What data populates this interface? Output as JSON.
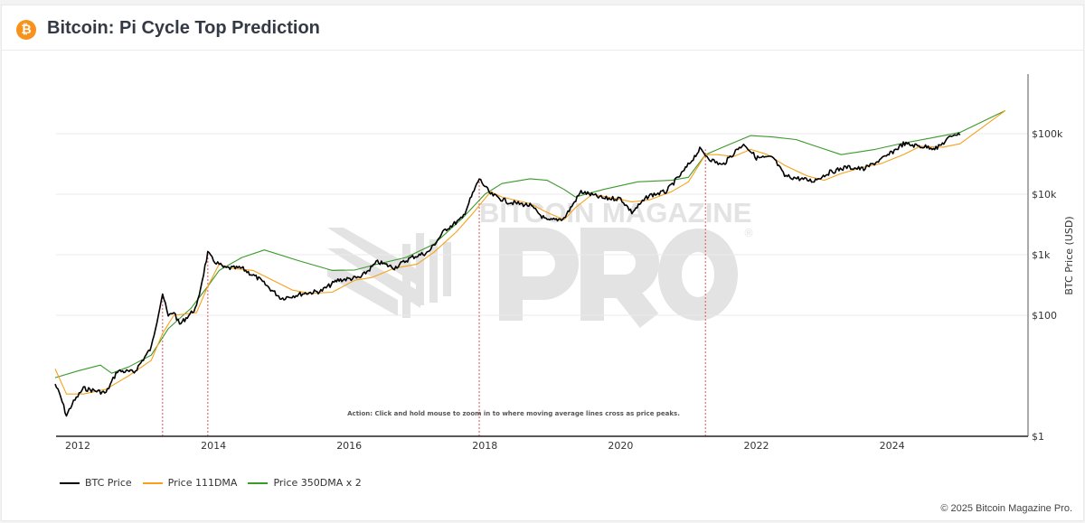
{
  "header": {
    "title": "Bitcoin: Pi Cycle Top Prediction",
    "icon": "bitcoin-icon"
  },
  "footer": {
    "copyright": "© 2025 Bitcoin Magazine Pro."
  },
  "watermark": {
    "line1": "BITCOIN MAGAZINE",
    "line2": "PRO",
    "mark": "®"
  },
  "colors": {
    "price": "#000000",
    "dma111": "#f7a11a",
    "dma350x2": "#3a9a2a",
    "cross": "#e74c4c"
  },
  "chart_data": {
    "type": "line",
    "title": "",
    "xlabel": "",
    "ylabel": "BTC Price (USD)",
    "yscale": "log",
    "ylim": [
      1,
      1000000
    ],
    "xlim": [
      "2011-09",
      "2026-01"
    ],
    "grid": true,
    "legend_placement": "bottom-left",
    "x_ticks": [
      "2012",
      "2014",
      "2016",
      "2018",
      "2020",
      "2022",
      "2024"
    ],
    "y_ticks": [
      {
        "value": 1,
        "label": "$1"
      },
      {
        "value": 100,
        "label": "$100"
      },
      {
        "value": 1000,
        "label": "$1k"
      },
      {
        "value": 10000,
        "label": "$10k"
      },
      {
        "value": 100000,
        "label": "$100k"
      }
    ],
    "annotation": "Action: Click and hold mouse to zoom in to where moving average lines cross as price peaks.",
    "crossings": [
      "2013-04",
      "2013-12",
      "2017-12",
      "2021-04"
    ],
    "series": [
      {
        "name": "BTC Price",
        "color": "#000000",
        "points": [
          [
            "2011-09",
            7.3
          ],
          [
            "2011-10",
            4.4
          ],
          [
            "2011-11",
            2.2
          ],
          [
            "2011-12",
            3.4
          ],
          [
            "2012-02",
            6.2
          ],
          [
            "2012-06",
            5.2
          ],
          [
            "2012-08",
            12
          ],
          [
            "2012-11",
            11.5
          ],
          [
            "2013-02",
            29
          ],
          [
            "2013-04",
            230
          ],
          [
            "2013-05",
            95
          ],
          [
            "2013-06",
            115
          ],
          [
            "2013-07",
            70
          ],
          [
            "2013-10",
            135
          ],
          [
            "2013-12",
            1070
          ],
          [
            "2014-01",
            800
          ],
          [
            "2014-03",
            600
          ],
          [
            "2014-06",
            600
          ],
          [
            "2014-09",
            400
          ],
          [
            "2015-01",
            190
          ],
          [
            "2015-05",
            230
          ],
          [
            "2015-08",
            250
          ],
          [
            "2015-11",
            380
          ],
          [
            "2016-03",
            420
          ],
          [
            "2016-06",
            760
          ],
          [
            "2016-09",
            610
          ],
          [
            "2016-12",
            900
          ],
          [
            "2017-03",
            1100
          ],
          [
            "2017-06",
            2600
          ],
          [
            "2017-09",
            4000
          ],
          [
            "2017-12",
            18000
          ],
          [
            "2018-02",
            10000
          ],
          [
            "2018-05",
            7500
          ],
          [
            "2018-09",
            6500
          ],
          [
            "2018-12",
            3600
          ],
          [
            "2019-03",
            4000
          ],
          [
            "2019-06",
            11000
          ],
          [
            "2019-10",
            8500
          ],
          [
            "2020-01",
            8500
          ],
          [
            "2020-03",
            5000
          ],
          [
            "2020-06",
            9500
          ],
          [
            "2020-09",
            11000
          ],
          [
            "2020-12",
            23000
          ],
          [
            "2021-03",
            55000
          ],
          [
            "2021-05",
            37000
          ],
          [
            "2021-07",
            30000
          ],
          [
            "2021-10",
            60000
          ],
          [
            "2021-11",
            66000
          ],
          [
            "2022-01",
            40000
          ],
          [
            "2022-04",
            40000
          ],
          [
            "2022-06",
            20000
          ],
          [
            "2022-11",
            16500
          ],
          [
            "2023-02",
            23000
          ],
          [
            "2023-05",
            28000
          ],
          [
            "2023-08",
            26000
          ],
          [
            "2023-12",
            42000
          ],
          [
            "2024-03",
            68000
          ],
          [
            "2024-06",
            62000
          ],
          [
            "2024-09",
            58000
          ],
          [
            "2024-12",
            100000
          ],
          [
            "2025-01",
            95000
          ]
        ]
      },
      {
        "name": "Price 111DMA",
        "color": "#f7a11a",
        "points": [
          [
            "2011-09",
            13
          ],
          [
            "2011-11",
            5
          ],
          [
            "2012-02",
            5
          ],
          [
            "2012-06",
            6
          ],
          [
            "2012-10",
            10
          ],
          [
            "2013-02",
            18
          ],
          [
            "2013-04",
            50
          ],
          [
            "2013-06",
            100
          ],
          [
            "2013-10",
            110
          ],
          [
            "2013-12",
            300
          ],
          [
            "2014-02",
            700
          ],
          [
            "2014-04",
            600
          ],
          [
            "2014-08",
            550
          ],
          [
            "2014-11",
            400
          ],
          [
            "2015-03",
            260
          ],
          [
            "2015-06",
            230
          ],
          [
            "2015-10",
            240
          ],
          [
            "2016-02",
            380
          ],
          [
            "2016-05",
            420
          ],
          [
            "2016-09",
            600
          ],
          [
            "2017-01",
            700
          ],
          [
            "2017-04",
            1100
          ],
          [
            "2017-08",
            2400
          ],
          [
            "2017-11",
            5000
          ],
          [
            "2018-02",
            11000
          ],
          [
            "2018-04",
            9000
          ],
          [
            "2018-09",
            7000
          ],
          [
            "2018-12",
            5000
          ],
          [
            "2019-03",
            3800
          ],
          [
            "2019-05",
            6000
          ],
          [
            "2019-08",
            10000
          ],
          [
            "2019-12",
            8500
          ],
          [
            "2020-03",
            7500
          ],
          [
            "2020-06",
            8000
          ],
          [
            "2020-10",
            11000
          ],
          [
            "2021-01",
            16000
          ],
          [
            "2021-04",
            45000
          ],
          [
            "2021-06",
            45000
          ],
          [
            "2021-09",
            42000
          ],
          [
            "2021-12",
            55000
          ],
          [
            "2022-03",
            45000
          ],
          [
            "2022-06",
            30000
          ],
          [
            "2022-10",
            20000
          ],
          [
            "2023-01",
            17000
          ],
          [
            "2023-04",
            22000
          ],
          [
            "2023-08",
            28000
          ],
          [
            "2023-11",
            32000
          ],
          [
            "2024-03",
            45000
          ],
          [
            "2024-06",
            62000
          ],
          [
            "2024-10",
            60000
          ],
          [
            "2025-01",
            68000
          ],
          [
            "2025-09",
            240000
          ]
        ]
      },
      {
        "name": "Price 350DMA x 2",
        "color": "#3a9a2a",
        "points": [
          [
            "2011-09",
            9.3
          ],
          [
            "2012-01",
            12
          ],
          [
            "2012-05",
            15
          ],
          [
            "2012-07",
            11
          ],
          [
            "2012-10",
            14
          ],
          [
            "2013-02",
            22
          ],
          [
            "2013-05",
            60
          ],
          [
            "2013-09",
            130
          ],
          [
            "2013-12",
            300
          ],
          [
            "2014-02",
            550
          ],
          [
            "2014-06",
            900
          ],
          [
            "2014-10",
            1200
          ],
          [
            "2015-04",
            800
          ],
          [
            "2015-10",
            550
          ],
          [
            "2016-02",
            560
          ],
          [
            "2016-06",
            700
          ],
          [
            "2016-11",
            900
          ],
          [
            "2017-04",
            1500
          ],
          [
            "2017-09",
            4000
          ],
          [
            "2018-01",
            10000
          ],
          [
            "2018-04",
            15000
          ],
          [
            "2018-09",
            18000
          ],
          [
            "2018-12",
            17000
          ],
          [
            "2019-03",
            12000
          ],
          [
            "2019-05",
            9000
          ],
          [
            "2019-10",
            12000
          ],
          [
            "2020-04",
            16000
          ],
          [
            "2020-10",
            17000
          ],
          [
            "2021-01",
            19000
          ],
          [
            "2021-04",
            45000
          ],
          [
            "2021-08",
            65000
          ],
          [
            "2021-12",
            93000
          ],
          [
            "2022-04",
            88000
          ],
          [
            "2022-08",
            80000
          ],
          [
            "2022-12",
            60000
          ],
          [
            "2023-04",
            45000
          ],
          [
            "2023-10",
            55000
          ],
          [
            "2024-03",
            70000
          ],
          [
            "2024-08",
            85000
          ],
          [
            "2025-01",
            105000
          ],
          [
            "2025-09",
            240000
          ]
        ]
      }
    ]
  }
}
